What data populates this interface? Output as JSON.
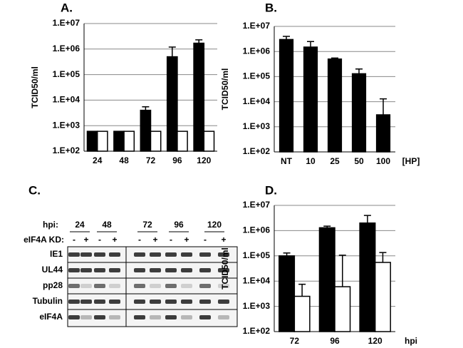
{
  "chart_data": [
    {
      "type": "bar",
      "label": "A.",
      "ylabel": "TCID50/ml",
      "log": true,
      "grid": true,
      "categories": [
        "24",
        "48",
        "72",
        "96",
        "120"
      ],
      "series": [
        {
          "color": "#000000",
          "values": [
            600,
            600,
            4000,
            500000,
            1700000
          ],
          "errors": [
            0,
            0,
            1500,
            700000,
            600000
          ]
        },
        {
          "color": "#ffffff",
          "values": [
            600,
            600,
            600,
            600,
            600
          ]
        }
      ],
      "ylim": [
        100,
        10000000
      ],
      "yticks": [
        {
          "value": 100,
          "label": "1.E+02"
        },
        {
          "value": 1000,
          "label": "1.E+03"
        },
        {
          "value": 10000,
          "label": "1.E+04"
        },
        {
          "value": 100000,
          "label": "1.E+05"
        },
        {
          "value": 1000000,
          "label": "1.E+06"
        },
        {
          "value": 10000000,
          "label": "1.E+07"
        }
      ]
    },
    {
      "type": "bar",
      "label": "B.",
      "ylabel": "TCID50/ml",
      "xlabel": "[HP]",
      "log": true,
      "grid": true,
      "categories": [
        "NT",
        "10",
        "25",
        "50",
        "100"
      ],
      "series": [
        {
          "color": "#000000",
          "values": [
            3000000,
            1500000,
            500000,
            130000,
            3000
          ],
          "errors": [
            1000000,
            1000000,
            50000,
            70000,
            10000
          ]
        }
      ],
      "ylim": [
        100,
        10000000
      ],
      "yticks": [
        {
          "value": 100,
          "label": "1.E+02"
        },
        {
          "value": 1000,
          "label": "1.E+03"
        },
        {
          "value": 10000,
          "label": "1.E+04"
        },
        {
          "value": 100000,
          "label": "1.E+05"
        },
        {
          "value": 1000000,
          "label": "1.E+06"
        },
        {
          "value": 10000000,
          "label": "1.E+07"
        }
      ]
    },
    {
      "type": "bar",
      "label": "D.",
      "ylabel": "TCID50/ml",
      "xlabel": "hpi",
      "log": true,
      "grid": true,
      "categories": [
        "72",
        "96",
        "120"
      ],
      "series": [
        {
          "color": "#000000",
          "values": [
            100000,
            1300000,
            2000000
          ],
          "errors": [
            30000,
            200000,
            2000000
          ]
        },
        {
          "color": "#ffffff",
          "values": [
            2500,
            6000,
            55000
          ],
          "errors": [
            5000,
            100000,
            80000
          ]
        }
      ],
      "ylim": [
        100,
        10000000
      ],
      "yticks": [
        {
          "value": 100,
          "label": "1.E+02"
        },
        {
          "value": 1000,
          "label": "1.E+03"
        },
        {
          "value": 10000,
          "label": "1.E+04"
        },
        {
          "value": 100000,
          "label": "1.E+05"
        },
        {
          "value": 1000000,
          "label": "1.E+06"
        },
        {
          "value": 10000000,
          "label": "1.E+07"
        }
      ]
    }
  ],
  "blot": {
    "label": "C.",
    "hpi_label": "hpi:",
    "kd_label": "eIF4A KD:",
    "hpi": [
      "24",
      "48",
      "72",
      "96",
      "120"
    ],
    "kd": [
      "-",
      "+",
      "-",
      "+",
      "-",
      "+",
      "-",
      "+",
      "-",
      "+"
    ],
    "rows": [
      "IE1",
      "UL44",
      "pp28",
      "Tubulin",
      "eIF4A"
    ]
  }
}
